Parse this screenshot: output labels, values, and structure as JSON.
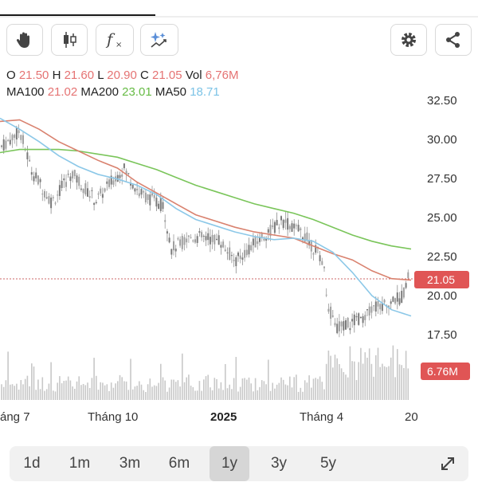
{
  "toolbar": {
    "left_tools": [
      "hand-icon",
      "candlestick-icon",
      "function-icon",
      "ai-sparkle-icon"
    ],
    "right_tools": [
      "gear-icon",
      "share-icon"
    ]
  },
  "ohlc": {
    "o_label": "O",
    "o": "21.50",
    "h_label": "H",
    "h": "21.60",
    "l_label": "L",
    "l": "20.90",
    "c_label": "C",
    "c": "21.05",
    "vol_label": "Vol",
    "vol": "6,76M"
  },
  "ma": {
    "ma100_label": "MA100",
    "ma100": "21.02",
    "ma200_label": "MA200",
    "ma200": "23.01",
    "ma50_label": "MA50",
    "ma50": "18.71"
  },
  "y_axis": [
    "32.50",
    "30.00",
    "27.50",
    "25.00",
    "22.50",
    "20.00",
    "17.50"
  ],
  "price_tag": "21.05",
  "volume_tag": "6.76M",
  "x_axis": [
    "áng 7",
    "Tháng 10",
    "2025",
    "Tháng 4",
    "20"
  ],
  "ranges": [
    "1d",
    "1m",
    "3m",
    "6m",
    "1y",
    "3y",
    "5y"
  ],
  "active_range": "1y",
  "colors": {
    "up": "#4caf50",
    "down": "#e05555",
    "ma100": "#e57373",
    "ma200": "#66bb44",
    "ma50": "#7cc3e6",
    "candle": "#888888"
  },
  "chart_data": {
    "type": "candlestick",
    "series": [
      {
        "name": "MA50",
        "values_approx": [
          31.4,
          30.7,
          29.9,
          29.0,
          28.3,
          27.8,
          27.5,
          27.1,
          26.5,
          25.6,
          24.9,
          24.5,
          24.1,
          23.8,
          23.6,
          23.7,
          23.5,
          22.8,
          21.5,
          20.0,
          19.1,
          18.7
        ]
      },
      {
        "name": "MA100",
        "values_approx": [
          31.2,
          31.3,
          30.7,
          29.9,
          29.3,
          28.7,
          28.2,
          27.3,
          26.6,
          25.9,
          25.2,
          24.8,
          24.4,
          24.1,
          23.9,
          23.7,
          23.2,
          22.7,
          22.3,
          21.6,
          21.1,
          21.0
        ]
      },
      {
        "name": "MA200",
        "values_approx": [
          29.2,
          29.4,
          29.4,
          29.4,
          29.3,
          29.1,
          28.9,
          28.5,
          28.1,
          27.6,
          27.1,
          26.7,
          26.3,
          25.9,
          25.6,
          25.3,
          24.9,
          24.4,
          23.9,
          23.5,
          23.2,
          23.0
        ]
      }
    ],
    "x_labels": [
      "áng 7",
      "Tháng 10",
      "2025",
      "Tháng 4",
      "20"
    ],
    "ylim": [
      15.5,
      33
    ],
    "last": {
      "open": 21.5,
      "high": 21.6,
      "low": 20.9,
      "close": 21.05,
      "volume": "6,76M"
    }
  }
}
